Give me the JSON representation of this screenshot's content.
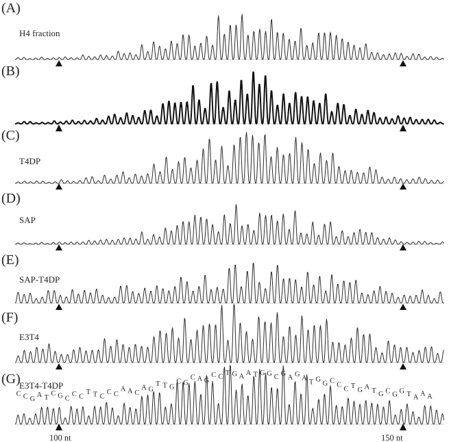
{
  "panels": [
    {
      "letter": "(A)",
      "name": "H4 fraction",
      "bold": false,
      "amp": 1.0
    },
    {
      "letter": "(B)",
      "name": "",
      "bold": true,
      "amp": 1.0
    },
    {
      "letter": "(C)",
      "name": "T4DP",
      "bold": false,
      "amp": 1.0
    },
    {
      "letter": "(D)",
      "name": "SAP",
      "bold": false,
      "amp": 0.85
    },
    {
      "letter": "(E)",
      "name": "SAP-T4DP",
      "bold": false,
      "amp": 0.95
    },
    {
      "letter": "(F)",
      "name": "E3T4",
      "bold": false,
      "amp": 1.05
    },
    {
      "letter": "(G)",
      "name": "E3T4-T4DP",
      "bold": false,
      "amp": 1.05
    }
  ],
  "sequence": [
    "C",
    "C",
    "G",
    "A",
    "T",
    "C",
    "G",
    "C",
    "C",
    "C",
    "T",
    "T",
    "C",
    "C",
    "C",
    "A",
    "A",
    "C",
    "A",
    "G",
    "T",
    "T",
    "G",
    "C",
    "G",
    "C",
    "A",
    "G",
    "C",
    "C",
    "T",
    "G",
    "A",
    "A",
    "T",
    "G",
    "G",
    "C",
    "G",
    "A",
    "G",
    "A",
    "T",
    "G",
    "G",
    "C",
    "C",
    "C",
    "T",
    "G",
    "A",
    "T",
    "G",
    "C",
    "G",
    "G",
    "T",
    "A",
    "A",
    "A"
  ],
  "axis": {
    "left_label": "100 nt",
    "right_label": "150 nt"
  }
}
